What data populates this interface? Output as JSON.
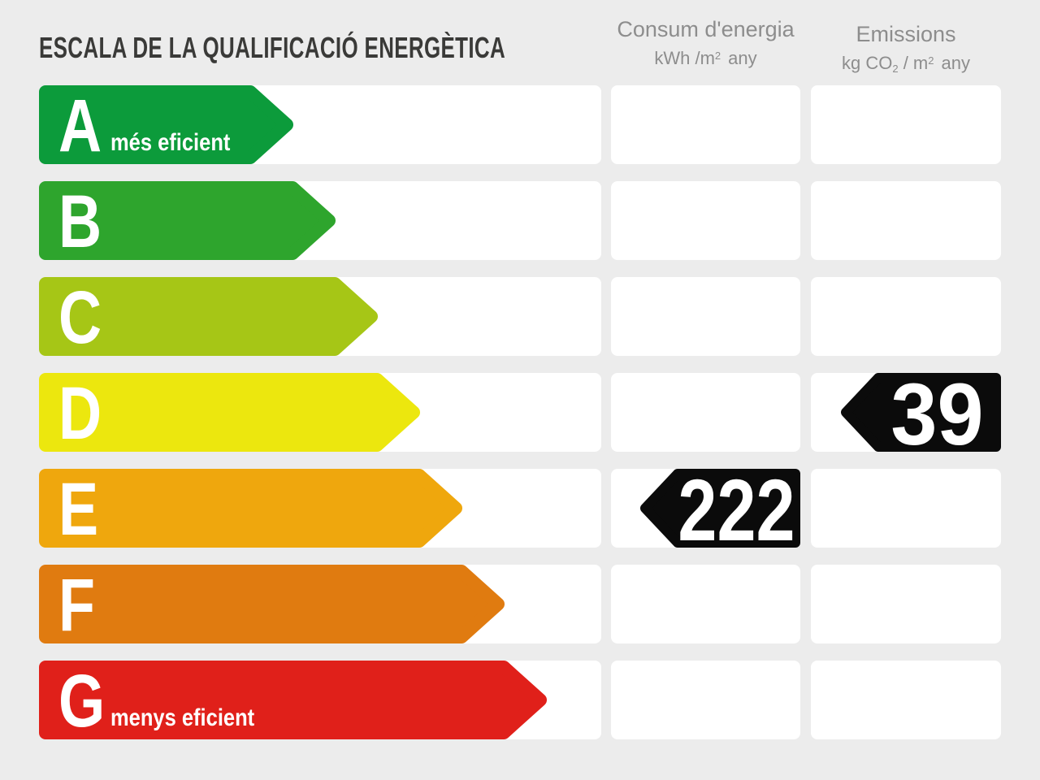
{
  "title": "ESCALA DE LA QUALIFICACIÓ ENERGÈTICA",
  "columns": {
    "consum": {
      "title": "Consum d'energia",
      "unit_prefix": "kWh /m",
      "unit_sup": "2",
      "unit_suffix": "any"
    },
    "emissions": {
      "title": "Emissions",
      "unit_prefix": "kg CO",
      "unit_sub": "2",
      "unit_mid": " / m",
      "unit_sup": "2",
      "unit_suffix": "any"
    }
  },
  "scale": {
    "rows": [
      {
        "letter": "A",
        "label": "més eficient",
        "color": "#0c9b3b",
        "arrow_width": 313
      },
      {
        "letter": "B",
        "label": "",
        "color": "#2ea52d",
        "arrow_width": 365
      },
      {
        "letter": "C",
        "label": "",
        "color": "#a6c616",
        "arrow_width": 417
      },
      {
        "letter": "D",
        "label": "",
        "color": "#ece70e",
        "arrow_width": 469
      },
      {
        "letter": "E",
        "label": "",
        "color": "#efa70d",
        "arrow_width": 521
      },
      {
        "letter": "F",
        "label": "",
        "color": "#e07b10",
        "arrow_width": 573
      },
      {
        "letter": "G",
        "label": "menys eficient",
        "color": "#e0201a",
        "arrow_width": 625
      }
    ]
  },
  "ratings": {
    "consum": {
      "value": "222",
      "row_letter": "E"
    },
    "emissions": {
      "value": "39",
      "row_letter": "D"
    }
  },
  "colors": {
    "page_bg": "#ececec",
    "cell_bg": "#ffffff",
    "title_text": "#3a3a38",
    "header_text": "#8d8d8d",
    "value_arrow": "#0b0b0b",
    "value_text": "#ffffff"
  },
  "chart_data": {
    "type": "bar",
    "title": "ESCALA DE LA QUALIFICACIÓ ENERGÈTICA",
    "categories": [
      "A",
      "B",
      "C",
      "D",
      "E",
      "F",
      "G"
    ],
    "category_labels": {
      "A": "més eficient",
      "G": "menys eficient"
    },
    "series": [
      {
        "name": "Consum d'energia (kWh/m2 any)",
        "value": 222,
        "rating": "E"
      },
      {
        "name": "Emissions (kg CO2/m2 any)",
        "value": 39,
        "rating": "D"
      }
    ],
    "legend_position": "none",
    "grid": false
  }
}
